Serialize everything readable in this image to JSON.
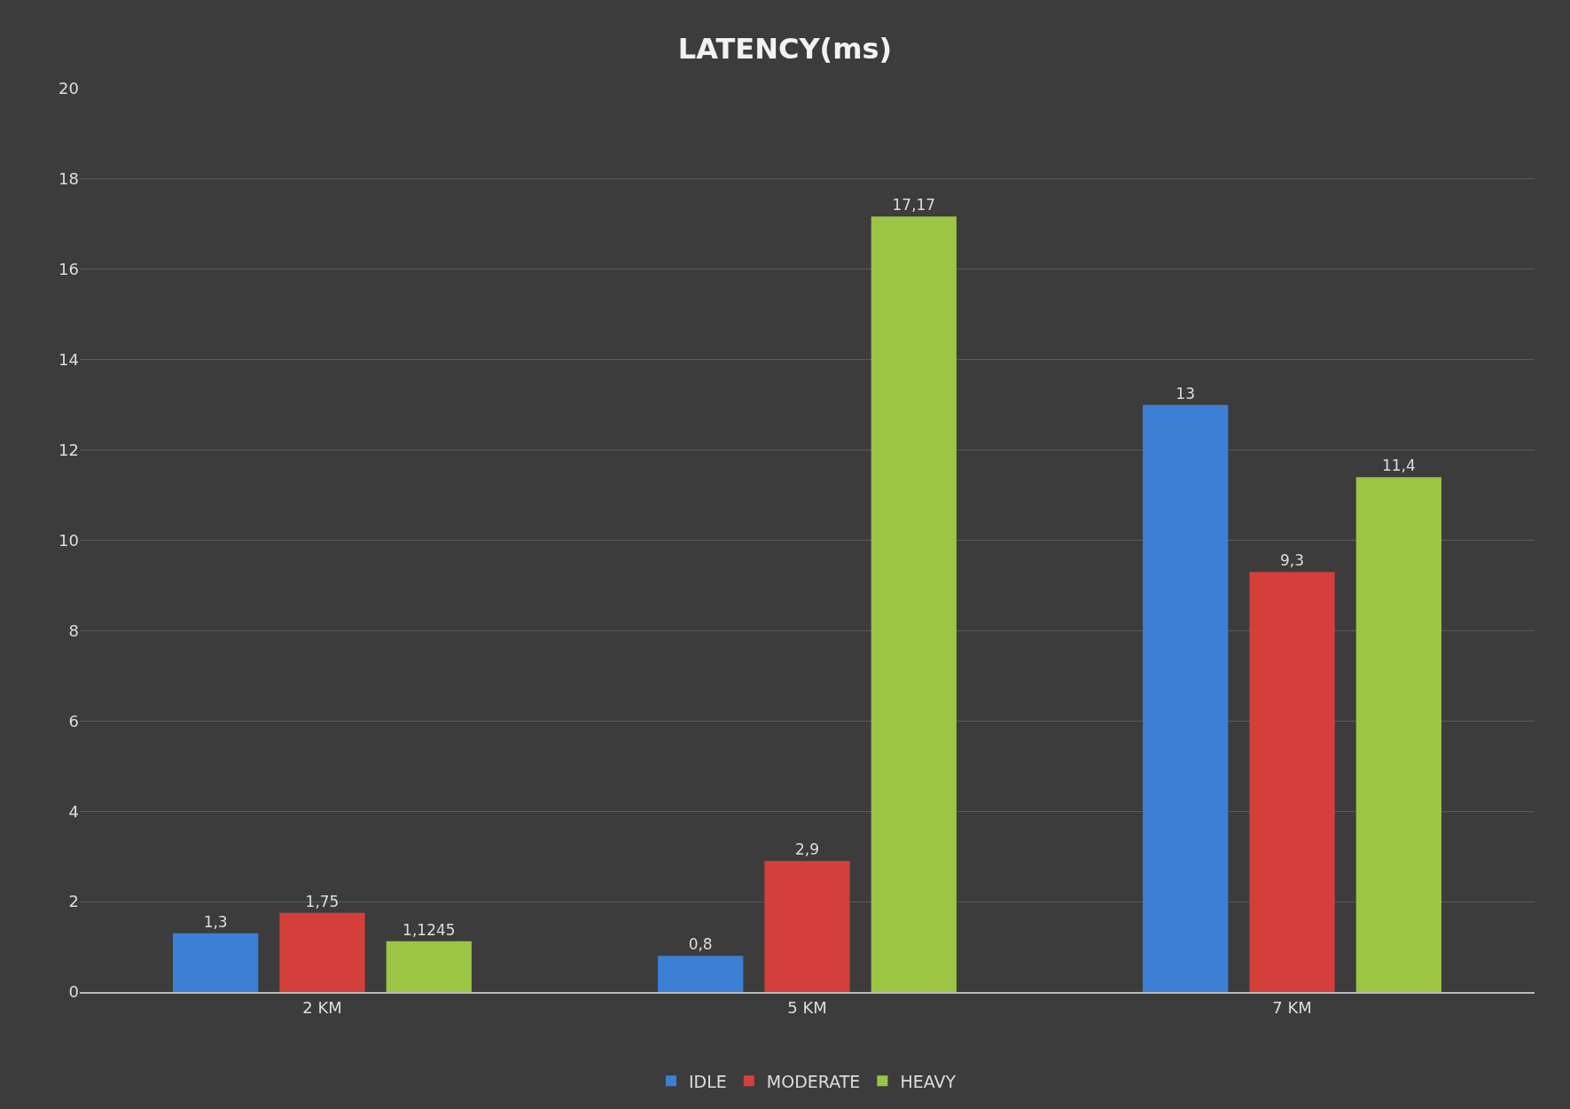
{
  "chart_data": {
    "type": "bar",
    "title": "LATENCY(ms)",
    "categories": [
      "2 KM",
      "5 KM",
      "7 KM"
    ],
    "series": [
      {
        "name": "IDLE",
        "color": "#3d7fd4",
        "values": [
          1.3,
          0.8,
          13
        ],
        "value_labels": [
          "1,3",
          "0,8",
          "13"
        ]
      },
      {
        "name": "MODERATE",
        "color": "#d43f3c",
        "values": [
          1.75,
          2.9,
          9.3
        ],
        "value_labels": [
          "1,75",
          "2,9",
          "9,3"
        ]
      },
      {
        "name": "HEAVY",
        "color": "#9ac545",
        "values": [
          1.1245,
          17.17,
          11.4
        ],
        "value_labels": [
          "1,1245",
          "17,17",
          "11,4"
        ]
      }
    ],
    "ylim": [
      0,
      20
    ],
    "yticks": [
      0,
      2,
      4,
      6,
      8,
      10,
      12,
      14,
      16,
      18,
      20
    ],
    "grid": "y",
    "legend": "bottom"
  }
}
